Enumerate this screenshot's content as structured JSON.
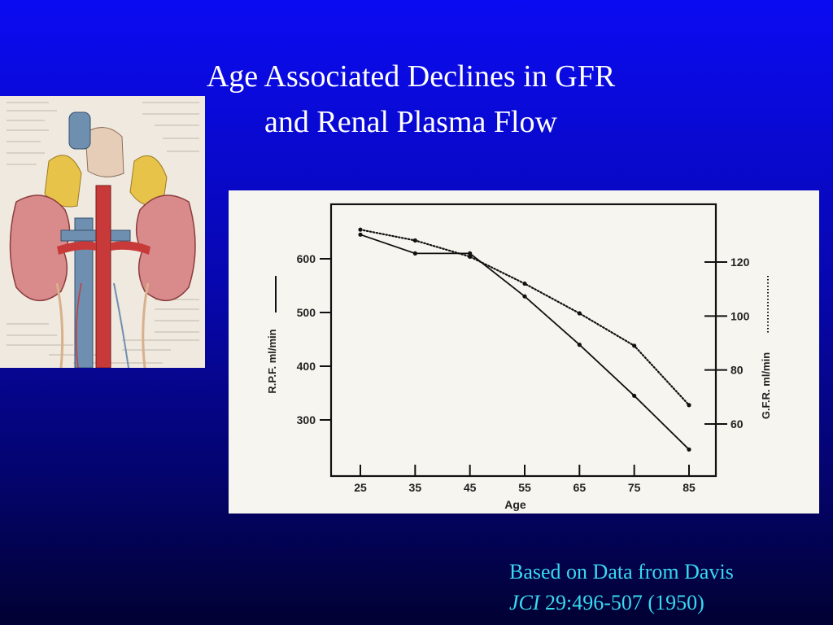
{
  "slide": {
    "title_line1": "Age Associated Declines in GFR",
    "title_line2": "and Renal Plasma Flow",
    "citation_line1": "Based on Data from Davis",
    "citation_journal": "JCI",
    "citation_ref": " 29:496-507 (1950)"
  },
  "colors": {
    "title": "#ffffff",
    "citation": "#39d9f0",
    "background_top": "#0b0bf2",
    "background_bottom": "#010133"
  },
  "anatomy_image": {
    "description_icon": "kidney-anatomy-illustration"
  },
  "chart_data": {
    "type": "line",
    "xlabel": "Age",
    "ylabel_left": "R.P.F. ml/min",
    "ylabel_right": "G.F.R. ml/min",
    "x": [
      25,
      35,
      45,
      55,
      65,
      75,
      85
    ],
    "x_ticks": [
      "25",
      "35",
      "45",
      "55",
      "65",
      "75",
      "85"
    ],
    "left_ticks": [
      300,
      400,
      500,
      600
    ],
    "right_ticks": [
      60,
      80,
      100,
      120
    ],
    "ylim_left": [
      240,
      700
    ],
    "ylim_right": [
      60,
      120
    ],
    "series": [
      {
        "name": "R.P.F. ml/min",
        "axis": "left",
        "style": "solid",
        "values": [
          645,
          610,
          610,
          530,
          440,
          345,
          245
        ]
      },
      {
        "name": "G.F.R. ml/min",
        "axis": "right",
        "style": "dotted",
        "values": [
          132,
          128,
          122,
          112,
          101,
          89,
          67
        ]
      }
    ]
  }
}
